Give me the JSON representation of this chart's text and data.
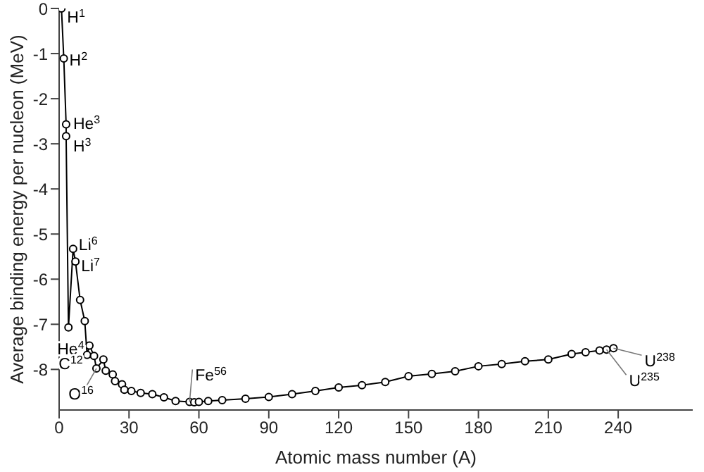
{
  "chart_data": {
    "type": "line",
    "xlabel": "Atomic mass number (A)",
    "ylabel": "Average binding energy per nucleon (MeV)",
    "xlim": [
      0,
      272
    ],
    "ylim": [
      -8.9,
      0
    ],
    "xticks": [
      0,
      30,
      60,
      90,
      120,
      150,
      180,
      210,
      240
    ],
    "yticks": [
      0,
      -1,
      -2,
      -3,
      -4,
      -5,
      -6,
      -7,
      -8
    ],
    "grid": false,
    "legend": false,
    "marker": "circle",
    "line_style": "solid",
    "series": [
      {
        "color": "#000000",
        "x": [
          1,
          2,
          3,
          3,
          4,
          6,
          7,
          9,
          11,
          12,
          13,
          15,
          16,
          19,
          20,
          23,
          24,
          27,
          28,
          31,
          35,
          40,
          45,
          50,
          56,
          58,
          60,
          64,
          70,
          80,
          90,
          100,
          110,
          120,
          130,
          140,
          150,
          160,
          170,
          180,
          190,
          200,
          210,
          220,
          226,
          232,
          235,
          238
        ],
        "values": [
          0,
          -1.11,
          -2.57,
          -2.83,
          -7.07,
          -5.33,
          -5.61,
          -6.46,
          -6.93,
          -7.68,
          -7.47,
          -7.7,
          -7.98,
          -7.78,
          -8.03,
          -8.11,
          -8.26,
          -8.33,
          -8.45,
          -8.48,
          -8.52,
          -8.55,
          -8.62,
          -8.7,
          -8.72,
          -8.73,
          -8.72,
          -8.7,
          -8.68,
          -8.65,
          -8.61,
          -8.55,
          -8.48,
          -8.4,
          -8.35,
          -8.28,
          -8.15,
          -8.1,
          -8.04,
          -7.93,
          -7.88,
          -7.82,
          -7.78,
          -7.66,
          -7.62,
          -7.58,
          -7.56,
          -7.53
        ]
      }
    ],
    "annotations": [
      {
        "text": "H$^{1}$",
        "x": 1,
        "y": 0
      },
      {
        "text": "H$^{2}$",
        "x": 2,
        "y": -1.11
      },
      {
        "text": "He$^{3}$",
        "x": 3,
        "y": -2.57
      },
      {
        "text": "H$^{3}$",
        "x": 3,
        "y": -2.83
      },
      {
        "text": "He$^{4}$",
        "x": 4,
        "y": -7.07
      },
      {
        "text": "Li$^{6}$",
        "x": 6,
        "y": -5.33
      },
      {
        "text": "Li$^{7}$",
        "x": 7,
        "y": -5.61
      },
      {
        "text": "C$^{12}$",
        "x": 12,
        "y": -7.68
      },
      {
        "text": "O$^{16}$",
        "x": 16,
        "y": -7.98
      },
      {
        "text": "Fe$^{56}$",
        "x": 56,
        "y": -8.72
      },
      {
        "text": "U$^{238}$",
        "x": 238,
        "y": -7.53
      },
      {
        "text": "U$^{235}$",
        "x": 235,
        "y": -7.56
      }
    ]
  }
}
